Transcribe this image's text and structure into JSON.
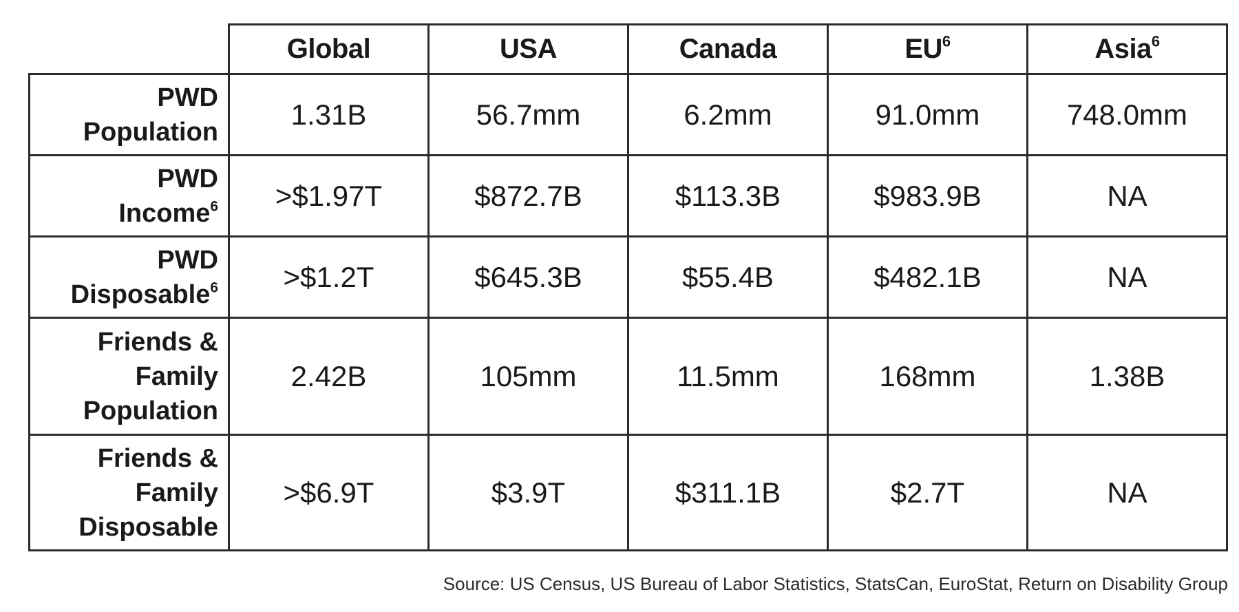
{
  "columns": [
    {
      "label": "Global",
      "sup": ""
    },
    {
      "label": "USA",
      "sup": ""
    },
    {
      "label": "Canada",
      "sup": ""
    },
    {
      "label": "EU",
      "sup": "6"
    },
    {
      "label": "Asia",
      "sup": "6"
    }
  ],
  "rows": [
    {
      "label_lines": [
        "PWD",
        "Population"
      ],
      "sup": "",
      "values": [
        "1.31B",
        "56.7mm",
        "6.2mm",
        "91.0mm",
        "748.0mm"
      ]
    },
    {
      "label_lines": [
        "PWD",
        "Income"
      ],
      "sup": "6",
      "values": [
        ">$1.97T",
        "$872.7B",
        "$113.3B",
        "$983.9B",
        "NA"
      ]
    },
    {
      "label_lines": [
        "PWD",
        "Disposable"
      ],
      "sup": "6",
      "values": [
        ">$1.2T",
        "$645.3B",
        "$55.4B",
        "$482.1B",
        "NA"
      ]
    },
    {
      "label_lines": [
        "Friends &",
        "Family",
        "Population"
      ],
      "sup": "",
      "values": [
        "2.42B",
        "105mm",
        "11.5mm",
        "168mm",
        "1.38B"
      ]
    },
    {
      "label_lines": [
        "Friends &",
        "Family",
        "Disposable"
      ],
      "sup": "",
      "values": [
        ">$6.9T",
        "$3.9T",
        "$311.1B",
        "$2.7T",
        "NA"
      ]
    }
  ],
  "source": "Source:  US Census, US Bureau of Labor Statistics, StatsCan, EuroStat, Return on Disability Group"
}
